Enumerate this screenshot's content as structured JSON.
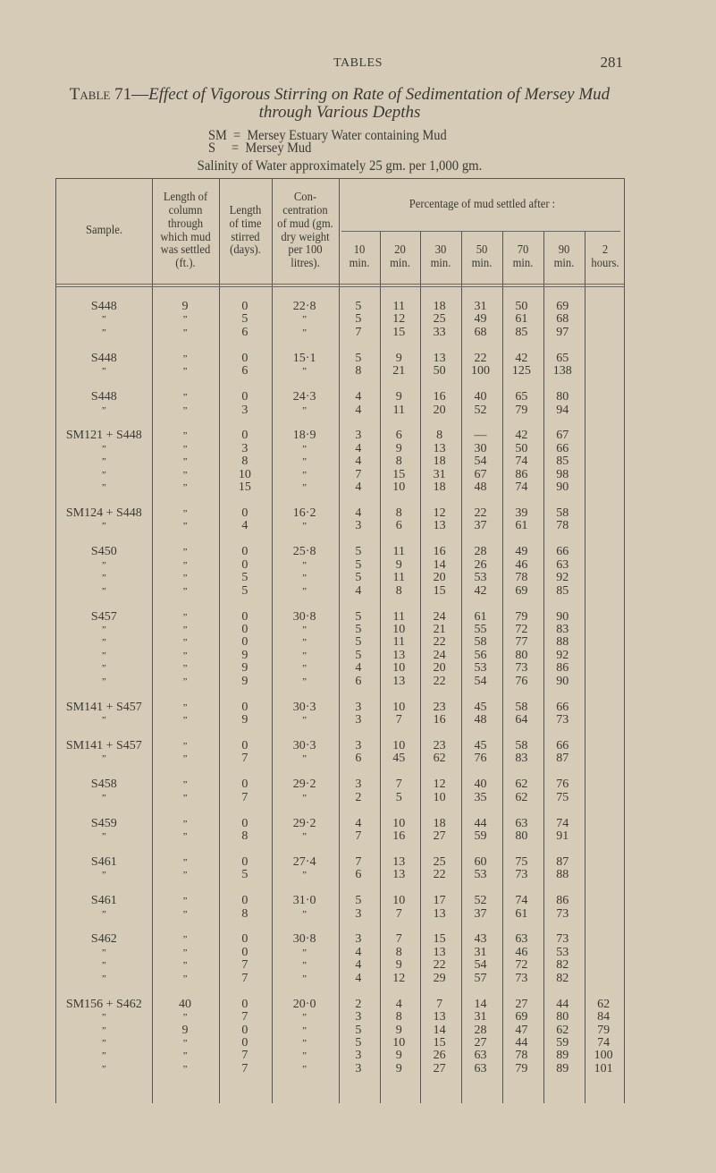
{
  "page": {
    "running_head": "TABLES",
    "page_number": "281"
  },
  "title": {
    "label": "Table 71—",
    "text": "Effect of Vigorous Stirring on Rate of Sedimentation of Mersey Mud",
    "line2": "through Various Depths"
  },
  "legend": [
    "SM  =  Mersey Estuary Water containing Mud",
    "S     =  Mersey Mud"
  ],
  "salinity": "Salinity of Water approximately 25 gm. per 1,000 gm.",
  "header": {
    "sample": [
      "Sample."
    ],
    "length_column": [
      "Length of",
      "column",
      "through",
      "which mud",
      "was settled",
      "(ft.)."
    ],
    "time_stirred": [
      "Length",
      "of time",
      "stirred",
      "(days)."
    ],
    "concentration": [
      "Con-",
      "centration",
      "of mud (gm.",
      "dry weight",
      "per 100",
      "litres)."
    ],
    "percentage": [
      "Percentage of mud settled after :"
    ],
    "times": [
      [
        "10",
        "min."
      ],
      [
        "20",
        "min."
      ],
      [
        "30",
        "min."
      ],
      [
        "50",
        "min."
      ],
      [
        "70",
        "min."
      ],
      [
        "90",
        "min."
      ],
      [
        "2",
        "hours."
      ]
    ]
  },
  "groups": [
    [
      [
        "S448",
        "9",
        "0",
        "22·8",
        "5",
        "11",
        "18",
        "31",
        "50",
        "69",
        ""
      ],
      [
        "”",
        "”",
        "5",
        "”",
        "5",
        "12",
        "25",
        "49",
        "61",
        "68",
        ""
      ],
      [
        "”",
        "”",
        "6",
        "”",
        "7",
        "15",
        "33",
        "68",
        "85",
        "97",
        ""
      ]
    ],
    [
      [
        "S448",
        "”",
        "0",
        "15·1",
        "5",
        "9",
        "13",
        "22",
        "42",
        "65",
        ""
      ],
      [
        "”",
        "”",
        "6",
        "”",
        "8",
        "21",
        "50",
        "100",
        "125",
        "138",
        ""
      ]
    ],
    [
      [
        "S448",
        "”",
        "0",
        "24·3",
        "4",
        "9",
        "16",
        "40",
        "65",
        "80",
        ""
      ],
      [
        "”",
        "”",
        "3",
        "”",
        "4",
        "11",
        "20",
        "52",
        "79",
        "94",
        ""
      ]
    ],
    [
      [
        "SM121 + S448",
        "”",
        "0",
        "18·9",
        "3",
        "6",
        "8",
        "—",
        "42",
        "67",
        ""
      ],
      [
        "”",
        "”",
        "3",
        "”",
        "4",
        "9",
        "13",
        "30",
        "50",
        "66",
        ""
      ],
      [
        "”",
        "”",
        "8",
        "”",
        "4",
        "8",
        "18",
        "54",
        "74",
        "85",
        ""
      ],
      [
        "”",
        "”",
        "10",
        "”",
        "7",
        "15",
        "31",
        "67",
        "86",
        "98",
        ""
      ],
      [
        "”",
        "”",
        "15",
        "”",
        "4",
        "10",
        "18",
        "48",
        "74",
        "90",
        ""
      ]
    ],
    [
      [
        "SM124 + S448",
        "”",
        "0",
        "16·2",
        "4",
        "8",
        "12",
        "22",
        "39",
        "58",
        ""
      ],
      [
        "”",
        "”",
        "4",
        "”",
        "3",
        "6",
        "13",
        "37",
        "61",
        "78",
        ""
      ]
    ],
    [
      [
        "S450",
        "”",
        "0",
        "25·8",
        "5",
        "11",
        "16",
        "28",
        "49",
        "66",
        ""
      ],
      [
        "”",
        "”",
        "0",
        "”",
        "5",
        "9",
        "14",
        "26",
        "46",
        "63",
        ""
      ],
      [
        "”",
        "”",
        "5",
        "”",
        "5",
        "11",
        "20",
        "53",
        "78",
        "92",
        ""
      ],
      [
        "”",
        "”",
        "5",
        "”",
        "4",
        "8",
        "15",
        "42",
        "69",
        "85",
        ""
      ]
    ],
    [
      [
        "S457",
        "”",
        "0",
        "30·8",
        "5",
        "11",
        "24",
        "61",
        "79",
        "90",
        ""
      ],
      [
        "”",
        "”",
        "0",
        "”",
        "5",
        "10",
        "21",
        "55",
        "72",
        "83",
        ""
      ],
      [
        "”",
        "”",
        "0",
        "”",
        "5",
        "11",
        "22",
        "58",
        "77",
        "88",
        ""
      ],
      [
        "”",
        "”",
        "9",
        "”",
        "5",
        "13",
        "24",
        "56",
        "80",
        "92",
        ""
      ],
      [
        "”",
        "”",
        "9",
        "”",
        "4",
        "10",
        "20",
        "53",
        "73",
        "86",
        ""
      ],
      [
        "”",
        "”",
        "9",
        "”",
        "6",
        "13",
        "22",
        "54",
        "76",
        "90",
        ""
      ]
    ],
    [
      [
        "SM141 + S457",
        "”",
        "0",
        "30·3",
        "3",
        "10",
        "23",
        "45",
        "58",
        "66",
        ""
      ],
      [
        "”",
        "”",
        "9",
        "”",
        "3",
        "7",
        "16",
        "48",
        "64",
        "73",
        ""
      ]
    ],
    [
      [
        "SM141 + S457",
        "”",
        "0",
        "30·3",
        "3",
        "10",
        "23",
        "45",
        "58",
        "66",
        ""
      ],
      [
        "”",
        "”",
        "7",
        "”",
        "6",
        "45",
        "62",
        "76",
        "83",
        "87",
        ""
      ]
    ],
    [
      [
        "S458",
        "”",
        "0",
        "29·2",
        "3",
        "7",
        "12",
        "40",
        "62",
        "76",
        ""
      ],
      [
        "”",
        "”",
        "7",
        "”",
        "2",
        "5",
        "10",
        "35",
        "62",
        "75",
        ""
      ]
    ],
    [
      [
        "S459",
        "”",
        "0",
        "29·2",
        "4",
        "10",
        "18",
        "44",
        "63",
        "74",
        ""
      ],
      [
        "”",
        "”",
        "8",
        "”",
        "7",
        "16",
        "27",
        "59",
        "80",
        "91",
        ""
      ]
    ],
    [
      [
        "S461",
        "”",
        "0",
        "27·4",
        "7",
        "13",
        "25",
        "60",
        "75",
        "87",
        ""
      ],
      [
        "”",
        "”",
        "5",
        "”",
        "6",
        "13",
        "22",
        "53",
        "73",
        "88",
        ""
      ]
    ],
    [
      [
        "S461",
        "”",
        "0",
        "31·0",
        "5",
        "10",
        "17",
        "52",
        "74",
        "86",
        ""
      ],
      [
        "”",
        "”",
        "8",
        "”",
        "3",
        "7",
        "13",
        "37",
        "61",
        "73",
        ""
      ]
    ],
    [
      [
        "S462",
        "”",
        "0",
        "30·8",
        "3",
        "7",
        "15",
        "43",
        "63",
        "73",
        ""
      ],
      [
        "”",
        "”",
        "0",
        "”",
        "4",
        "8",
        "13",
        "31",
        "46",
        "53",
        ""
      ],
      [
        "”",
        "”",
        "7",
        "”",
        "4",
        "9",
        "22",
        "54",
        "72",
        "82",
        ""
      ],
      [
        "”",
        "”",
        "7",
        "”",
        "4",
        "12",
        "29",
        "57",
        "73",
        "82",
        ""
      ]
    ],
    [
      [
        "SM156 + S462",
        "40",
        "0",
        "20·0",
        "2",
        "4",
        "7",
        "14",
        "27",
        "44",
        "62"
      ],
      [
        "”",
        "”",
        "7",
        "”",
        "3",
        "8",
        "13",
        "31",
        "69",
        "80",
        "84"
      ],
      [
        "”",
        "9",
        "0",
        "”",
        "5",
        "9",
        "14",
        "28",
        "47",
        "62",
        "79"
      ],
      [
        "”",
        "”",
        "0",
        "”",
        "5",
        "10",
        "15",
        "27",
        "44",
        "59",
        "74"
      ],
      [
        "”",
        "”",
        "7",
        "”",
        "3",
        "9",
        "26",
        "63",
        "78",
        "89",
        "100"
      ],
      [
        "”",
        "”",
        "7",
        "”",
        "3",
        "9",
        "27",
        "63",
        "79",
        "89",
        "101"
      ]
    ]
  ]
}
